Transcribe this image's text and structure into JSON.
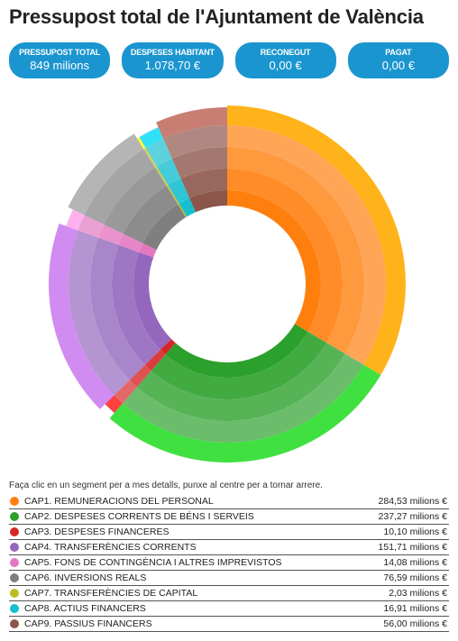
{
  "title": "Pressupost total de l'Ajuntament de València",
  "stats": [
    {
      "label": "PRESSUPOST TOTAL",
      "value": "849 milions"
    },
    {
      "label": "DESPESES HABITANT",
      "value": "1.078,70 €"
    },
    {
      "label": "RECONEGUT",
      "value": "0,00 €"
    },
    {
      "label": "PAGAT",
      "value": "0,00 €"
    }
  ],
  "hint": "Faça clic en un segment per a mes detalls, punxe al centre per a tornar arrere.",
  "chart_data": {
    "type": "pie",
    "categories": [
      "CAP1. REMUNERACIONS DEL PERSONAL",
      "CAP2. DESPESES CORRENTS DE BÉNS I SERVEIS",
      "CAP3. DESPESES FINANCERES",
      "CAP4. TRANSFERÈNCIES CORRENTS",
      "CAP5. FONS DE CONTINGÈNCIA I ALTRES IMPREVISTOS",
      "CAP6. INVERSIONS REALS",
      "CAP7. TRANSFERÈNCIES DE CAPITAL",
      "CAP8. ACTIUS FINANCERS",
      "CAP9. PASSIUS FINANCERS"
    ],
    "values": [
      284.53,
      237.27,
      10.1,
      151.71,
      14.08,
      76.59,
      2.03,
      16.91,
      56.0
    ],
    "value_labels": [
      "284,53 milions €",
      "237,27 milions €",
      "10,10 milions €",
      "151,71 milions €",
      "14,08 milions €",
      "76,59 milions €",
      "2,03 milions €",
      "16,91 milions €",
      "56,00 milions €"
    ],
    "colors": [
      "#ff7f0e",
      "#2ca02c",
      "#d62728",
      "#9467bd",
      "#e377c2",
      "#7f7f7f",
      "#bcbd22",
      "#17becf",
      "#8c564b"
    ],
    "outer_colors": [
      "#ffb31a",
      "#40e040",
      "#ff4040",
      "#d08cf0",
      "#ffb0ef",
      "#b5b5b5",
      "#ffff30",
      "#30e0f8",
      "#c87e72"
    ]
  }
}
